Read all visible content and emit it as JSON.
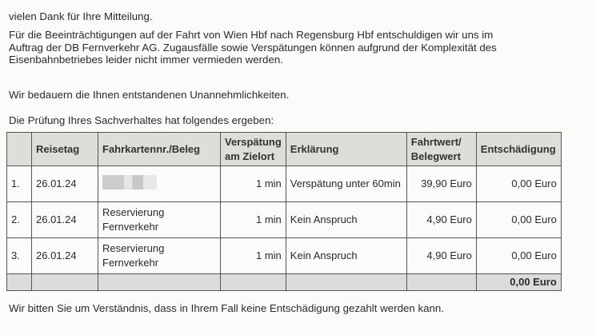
{
  "greeting": "vielen Dank für Ihre Mitteilung.",
  "para1": [
    "Für die Beeinträchtigungen auf der Fahrt von Wien Hbf nach Regensburg Hbf entschuldigen wir uns im",
    "Auftrag der DB Fernverkehr AG. Zugausfälle sowie Verspätungen können aufgrund der Komplexität des",
    "Eisenbahnbetriebes leider nicht immer vermieden werden."
  ],
  "para2": "Wir bedauern die Ihnen entstandenen Unannehmlichkeiten.",
  "intro": "Die Prüfung Ihres Sachverhaltes hat folgendes ergeben:",
  "table": {
    "headers": [
      "",
      "Reisetag",
      "Fahrkartennr./Beleg",
      "Verspätung am Zielort",
      "Erklärung",
      "Fahrtwert/ Belegwert",
      "Entschädigung"
    ],
    "rows": [
      [
        "1.",
        "26.01.24",
        "",
        "1 min",
        "Verspätung unter 60min",
        "39,90 Euro",
        "0,00 Euro"
      ],
      [
        "2.",
        "26.01.24",
        "Reservierung Fernverkehr",
        "1 min",
        "Kein Anspruch",
        "4,90 Euro",
        "0,00 Euro"
      ],
      [
        "3.",
        "26.01.24",
        "Reservierung Fernverkehr",
        "1 min",
        "Kein Anspruch",
        "4,90 Euro",
        "0,00 Euro"
      ]
    ],
    "total": "0,00 Euro"
  },
  "closing": "Wir bitten Sie um Verständnis, dass in Ihrem Fall keine Entschädigung gezahlt werden kann."
}
